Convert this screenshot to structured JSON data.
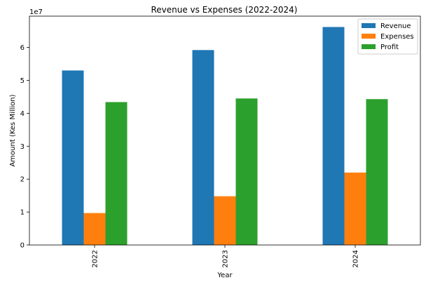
{
  "chart_data": {
    "type": "bar",
    "title": "Revenue vs Expenses (2022-2024)",
    "xlabel": "Year",
    "ylabel": "Amount (Kes Million)",
    "y_offset_label": "1e7",
    "categories": [
      "2022",
      "2023",
      "2024"
    ],
    "series": [
      {
        "name": "Revenue",
        "color": "#1f77b4",
        "values": [
          53000000,
          59200000,
          66200000
        ]
      },
      {
        "name": "Expenses",
        "color": "#ff7f0e",
        "values": [
          9700000,
          14800000,
          22000000
        ]
      },
      {
        "name": "Profit",
        "color": "#2ca02c",
        "values": [
          43400000,
          44500000,
          44300000
        ]
      }
    ],
    "ylim": [
      0,
      69500000
    ],
    "yticks": [
      {
        "value": 0,
        "label": "0"
      },
      {
        "value": 10000000,
        "label": "1"
      },
      {
        "value": 20000000,
        "label": "2"
      },
      {
        "value": 30000000,
        "label": "3"
      },
      {
        "value": 40000000,
        "label": "4"
      },
      {
        "value": 50000000,
        "label": "5"
      },
      {
        "value": 60000000,
        "label": "6"
      }
    ],
    "grid": false,
    "legend_position": "top-right"
  }
}
